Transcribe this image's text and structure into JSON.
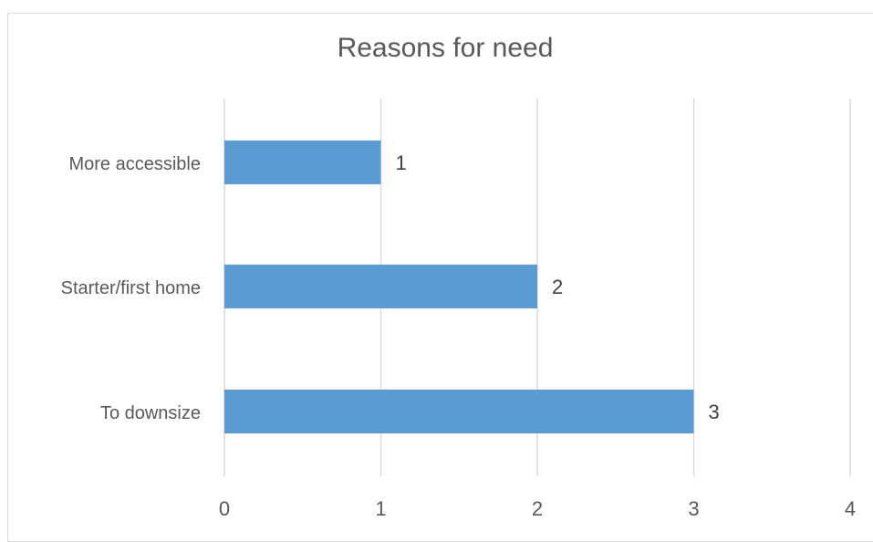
{
  "chart_data": {
    "type": "bar",
    "orientation": "horizontal",
    "title": "Reasons for need",
    "categories": [
      "More accessible",
      "Starter/first home",
      "To downsize"
    ],
    "values": [
      1,
      2,
      3
    ],
    "data_labels": [
      "1",
      "2",
      "3"
    ],
    "xlim": [
      0,
      4
    ],
    "x_ticks": [
      0,
      1,
      2,
      3,
      4
    ],
    "x_tick_labels": [
      "0",
      "1",
      "2",
      "3",
      "4"
    ],
    "grid": "vertical",
    "legend": "none",
    "bar_color": "#5b9bd5",
    "grid_color": "#d9d9d9",
    "text_color": "#595959"
  }
}
